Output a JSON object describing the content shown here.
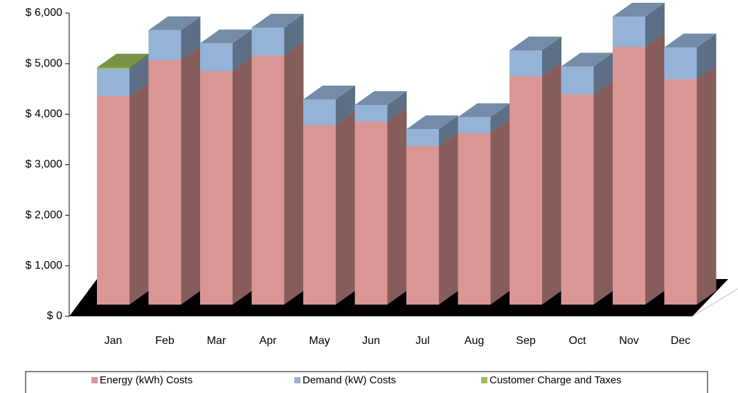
{
  "chart_data": {
    "type": "bar3d_stacked",
    "categories": [
      "Jan",
      "Feb",
      "Mar",
      "Apr",
      "May",
      "Jun",
      "Jul",
      "Aug",
      "Sep",
      "Oct",
      "Nov",
      "Dec"
    ],
    "series": [
      {
        "name": "Energy (kWh) Costs",
        "color": "#d99694",
        "values": [
          4130,
          4840,
          4620,
          4930,
          3550,
          3620,
          3140,
          3390,
          4520,
          4160,
          5100,
          4460
        ]
      },
      {
        "name": "Demand (kW) Costs",
        "color": "#95b3d7",
        "values": [
          530,
          590,
          550,
          550,
          510,
          330,
          330,
          320,
          510,
          550,
          600,
          630
        ]
      },
      {
        "name": "Customer Charge and Taxes",
        "color": "#9bbb59",
        "values": [
          30,
          0,
          0,
          0,
          0,
          0,
          0,
          0,
          0,
          0,
          0,
          0
        ]
      }
    ],
    "ylim": [
      0,
      6000
    ],
    "yticks": [
      {
        "value": 0,
        "label": "$ 0"
      },
      {
        "value": 1000,
        "label": "$ 1,000"
      },
      {
        "value": 2000,
        "label": "$ 2,000"
      },
      {
        "value": 3000,
        "label": "$ 3,000"
      },
      {
        "value": 4000,
        "label": "$ 4,000"
      },
      {
        "value": 5000,
        "label": "$ 5,000"
      },
      {
        "value": 6000,
        "label": "$ 6,000"
      }
    ]
  }
}
